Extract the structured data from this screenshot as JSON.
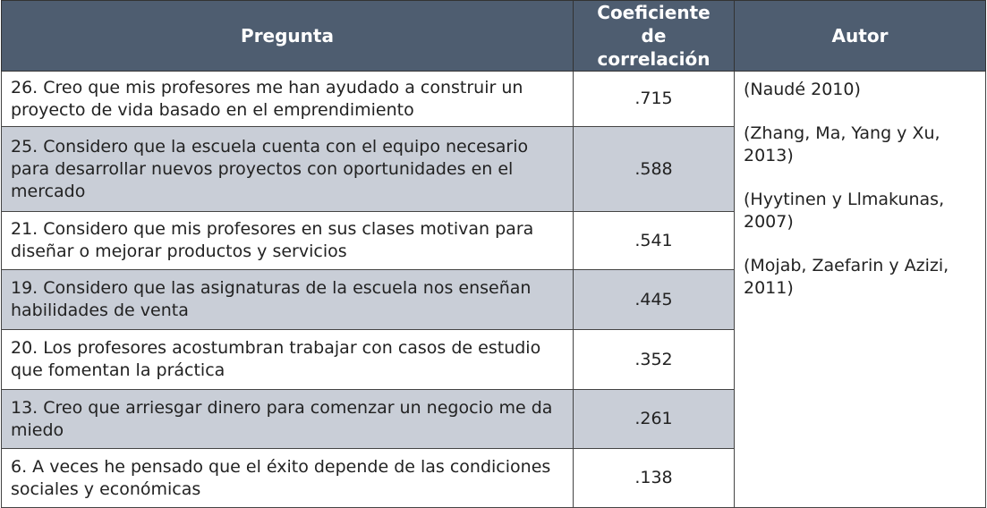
{
  "table": {
    "header": [
      "Pregunta",
      "Coeficiente de correlación",
      "Autor"
    ],
    "rows": [
      [
        "26. Creo que mis profesores me han ayudado a construir un proyecto de vida basado en el emprendimiento",
        ".715"
      ],
      [
        "25. Considero que la escuela cuenta con el equipo necesario para desarrollar nuevos proyectos con oportunidades en el mercado",
        ".588"
      ],
      [
        "21. Considero que mis profesores en sus clases motivan para diseñar o mejorar productos y servicios",
        ".541"
      ],
      [
        "19. Considero que las asignaturas de la escuela nos enseñan habilidades de venta",
        ".445"
      ],
      [
        "20. Los profesores acostumbran trabajar con casos de estudio que fomentan la práctica",
        ".352"
      ],
      [
        "13. Creo que arriesgar dinero para comenzar un negocio me da miedo",
        ".261"
      ],
      [
        "6. A veces he pensado que el éxito depende de las condiciones sociales y económicas",
        ".138"
      ]
    ],
    "authors": [
      "(Naudé 2010)",
      "(Zhang, Ma, Yang y Xu, 2013)",
      "(Hyytinen y Llmakunas, 2007)",
      "(Mojab, Zaefarin y Azizi, 2011)"
    ]
  }
}
